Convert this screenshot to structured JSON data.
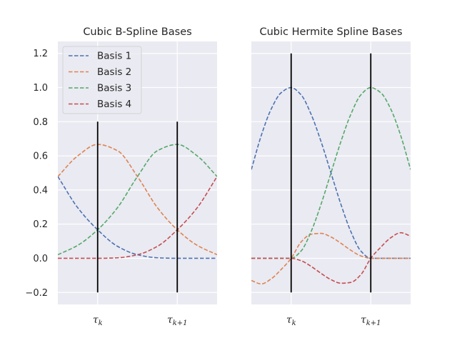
{
  "colors": {
    "background": "#eaeaf2",
    "grid": "#ffffff",
    "marker_line": "#000000",
    "basis_1": "#4c72b0",
    "basis_2": "#dd8452",
    "basis_3": "#55a868",
    "basis_4": "#c44e52"
  },
  "chart_data": [
    {
      "type": "line",
      "title": "Cubic B-Spline Bases",
      "line_style": "dashed",
      "xlim": [
        -0.5,
        1.5
      ],
      "ylim": [
        -0.27,
        1.27
      ],
      "yticks": [
        -0.2,
        0.0,
        0.2,
        0.4,
        0.6,
        0.8,
        1.0,
        1.2
      ],
      "ytick_labels": [
        "−0.2",
        "0.0",
        "0.2",
        "0.4",
        "0.6",
        "0.8",
        "1.0",
        "1.2"
      ],
      "xticks": [
        0,
        1
      ],
      "xtick_labels": [
        {
          "base": "τ",
          "sub": "k"
        },
        {
          "base": "τ",
          "sub": "k+1"
        }
      ],
      "grid": true,
      "legend": {
        "position": "top-left",
        "entries": [
          "Basis 1",
          "Basis 2",
          "Basis 3",
          "Basis 4"
        ]
      },
      "vertical_lines": [
        {
          "x": 0,
          "ymin": -0.2,
          "ymax": 0.8
        },
        {
          "x": 1,
          "ymin": -0.2,
          "ymax": 0.8
        }
      ],
      "x": [
        -0.5,
        -0.25,
        0.0,
        0.25,
        0.5,
        0.75,
        1.0,
        1.25,
        1.5
      ],
      "series": [
        {
          "name": "Basis 1",
          "color_key": "basis_1",
          "values": [
            0.479,
            0.296,
            0.167,
            0.07,
            0.021,
            0.003,
            0.0,
            0.0,
            0.0
          ]
        },
        {
          "name": "Basis 2",
          "color_key": "basis_2",
          "values": [
            0.479,
            0.6,
            0.667,
            0.63,
            0.479,
            0.297,
            0.167,
            0.076,
            0.021
          ]
        },
        {
          "name": "Basis 3",
          "color_key": "basis_3",
          "values": [
            0.021,
            0.076,
            0.167,
            0.297,
            0.479,
            0.63,
            0.667,
            0.6,
            0.479
          ]
        },
        {
          "name": "Basis 4",
          "color_key": "basis_4",
          "values": [
            0.0,
            0.0,
            0.0,
            0.003,
            0.021,
            0.07,
            0.167,
            0.296,
            0.479
          ]
        }
      ]
    },
    {
      "type": "line",
      "title": "Cubic Hermite Spline Bases",
      "line_style": "dashed",
      "xlim": [
        -0.5,
        1.5
      ],
      "ylim": [
        -0.27,
        1.27
      ],
      "yticks": [
        -0.2,
        0.0,
        0.2,
        0.4,
        0.6,
        0.8,
        1.0,
        1.2
      ],
      "xticks": [
        0,
        1
      ],
      "xtick_labels": [
        {
          "base": "τ",
          "sub": "k"
        },
        {
          "base": "τ",
          "sub": "k+1"
        }
      ],
      "grid": true,
      "vertical_lines": [
        {
          "x": 0,
          "ymin": -0.2,
          "ymax": 1.2
        },
        {
          "x": 1,
          "ymin": -0.2,
          "ymax": 1.2
        }
      ],
      "x": [
        -0.5,
        -0.375,
        -0.25,
        -0.125,
        0.0,
        0.125,
        0.25,
        0.375,
        0.5,
        0.625,
        0.75,
        0.875,
        1.0,
        1.125,
        1.25,
        1.375,
        1.5
      ],
      "series": [
        {
          "name": "Basis 1",
          "color_key": "basis_1",
          "values": [
            0.52,
            0.72,
            0.875,
            0.97,
            1.0,
            0.957,
            0.844,
            0.684,
            0.5,
            0.316,
            0.156,
            0.043,
            0.0,
            0.0,
            0.0,
            0.0,
            0.0
          ]
        },
        {
          "name": "Basis 2",
          "color_key": "basis_2",
          "values": [
            -0.13,
            -0.15,
            -0.12,
            -0.065,
            0.0,
            0.096,
            0.141,
            0.146,
            0.125,
            0.088,
            0.047,
            0.014,
            0.0,
            0.0,
            0.0,
            0.0,
            0.0
          ]
        },
        {
          "name": "Basis 3",
          "color_key": "basis_3",
          "values": [
            0.0,
            0.0,
            0.0,
            0.0,
            0.0,
            0.043,
            0.156,
            0.316,
            0.5,
            0.684,
            0.844,
            0.957,
            1.0,
            0.97,
            0.875,
            0.72,
            0.52
          ]
        },
        {
          "name": "Basis 4",
          "color_key": "basis_4",
          "values": [
            0.0,
            0.0,
            0.0,
            0.0,
            0.0,
            -0.014,
            -0.047,
            -0.088,
            -0.125,
            -0.146,
            -0.141,
            -0.096,
            0.0,
            0.065,
            0.12,
            0.15,
            0.13
          ]
        }
      ]
    }
  ]
}
